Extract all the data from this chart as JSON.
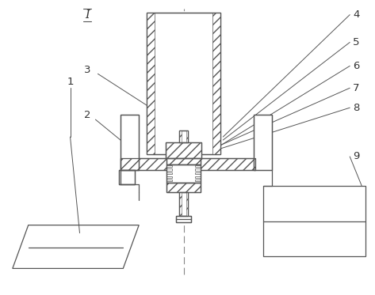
{
  "bg_color": "#ffffff",
  "line_color": "#555555",
  "fig_width": 4.73,
  "fig_height": 3.73,
  "dpi": 100
}
